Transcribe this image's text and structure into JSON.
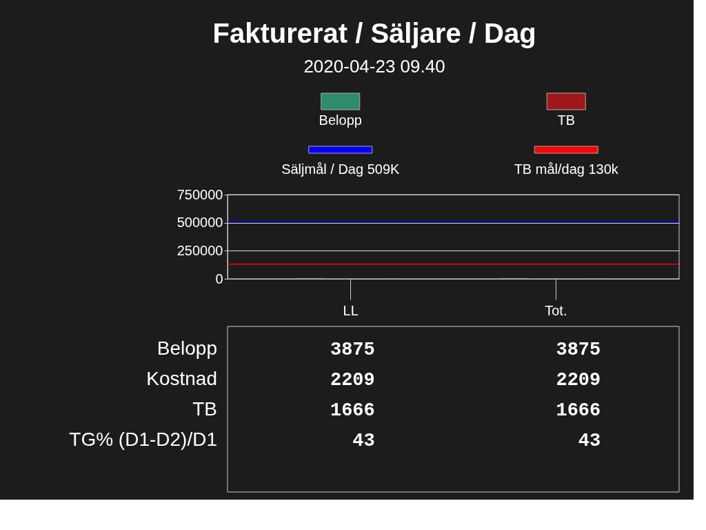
{
  "chart_data": {
    "type": "bar",
    "title": "Fakturerat / Säljare / Dag",
    "subtitle": "2020-04-23 09.40",
    "categories": [
      "LL",
      "Tot."
    ],
    "series": [
      {
        "name": "Belopp",
        "color": "#2e8b6e",
        "values": [
          3875,
          3875
        ]
      },
      {
        "name": "TB",
        "color": "#a01818",
        "values": [
          1666,
          1666
        ]
      }
    ],
    "ylim": [
      0,
      750000
    ],
    "yticks": [
      0,
      250000,
      500000,
      750000
    ],
    "grid": "y",
    "legend": "top",
    "data_labels": true,
    "ref_lines": [
      {
        "axis": "y",
        "value": 509000,
        "label": "Säljmål / Dag 509K",
        "color": "#0000ff"
      },
      {
        "axis": "y",
        "value": 130000,
        "label": "TB mål/dag 130k",
        "color": "#ff0000"
      }
    ],
    "annotations": [
      "Kostnad",
      "2209",
      "2209",
      "TG% (D1-D2)/D1",
      "43",
      "43"
    ]
  }
}
